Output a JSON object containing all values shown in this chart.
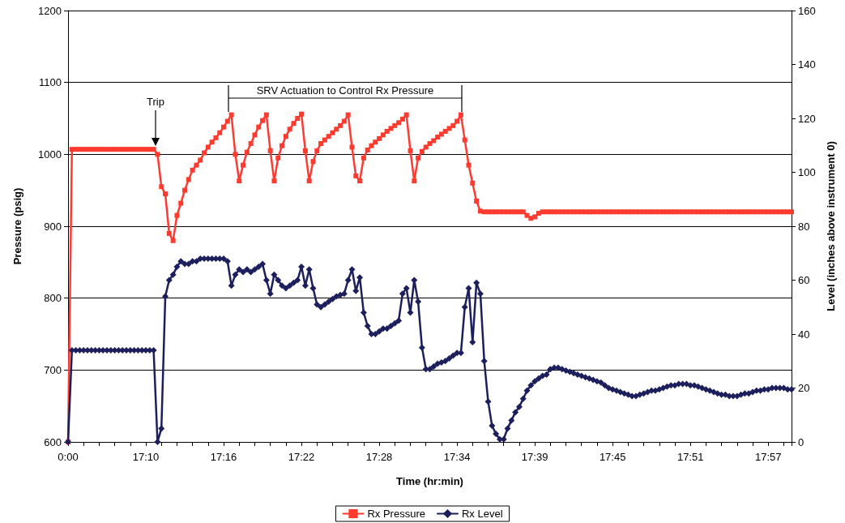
{
  "chart_data": {
    "type": "line",
    "xlabel": "Time (hr:min)",
    "ylabel": "Pressure (psig)",
    "y2label": "Level (inches above instrument 0)",
    "categories": [
      "0:00",
      null,
      null,
      null,
      null,
      null,
      null,
      null,
      null,
      null,
      null,
      null,
      null,
      null,
      null,
      null,
      null,
      null,
      null,
      null,
      "17:10",
      null,
      null,
      null,
      null,
      null,
      null,
      null,
      null,
      null,
      null,
      null,
      null,
      null,
      null,
      null,
      null,
      null,
      null,
      null,
      "17:16",
      null,
      null,
      null,
      null,
      null,
      null,
      null,
      null,
      null,
      null,
      null,
      null,
      null,
      null,
      null,
      null,
      null,
      null,
      null,
      "17:22",
      null,
      null,
      null,
      null,
      null,
      null,
      null,
      null,
      null,
      null,
      null,
      null,
      null,
      null,
      null,
      null,
      null,
      null,
      null,
      "17:28",
      null,
      null,
      null,
      null,
      null,
      null,
      null,
      null,
      null,
      null,
      null,
      null,
      null,
      null,
      null,
      null,
      null,
      null,
      null,
      "17:34",
      null,
      null,
      null,
      null,
      null,
      null,
      null,
      null,
      null,
      null,
      null,
      null,
      null,
      null,
      null,
      null,
      null,
      null,
      null,
      "17:39",
      null,
      null,
      null,
      null,
      null,
      null,
      null,
      null,
      null,
      null,
      null,
      null,
      null,
      null,
      null,
      null,
      null,
      null,
      null,
      "17:45",
      null,
      null,
      null,
      null,
      null,
      null,
      null,
      null,
      null,
      null,
      null,
      null,
      null,
      null,
      null,
      null,
      null,
      null,
      null,
      "17:51",
      null,
      null,
      null,
      null,
      null,
      null,
      null,
      null,
      null,
      null,
      null,
      null,
      null,
      null,
      null,
      null,
      null,
      null,
      null,
      "17:57",
      null,
      null,
      null,
      null,
      null,
      null
    ],
    "series": [
      {
        "name": "Rx Pressure",
        "color": "#ff3b30",
        "marker": "square",
        "values": [
          600,
          1007,
          1007,
          1007,
          1007,
          1007,
          1007,
          1007,
          1007,
          1007,
          1007,
          1007,
          1007,
          1007,
          1007,
          1007,
          1007,
          1007,
          1007,
          1007,
          1007,
          1007,
          1007,
          1000,
          955,
          945,
          890,
          880,
          915,
          932,
          950,
          965,
          978,
          985,
          992,
          1002,
          1010,
          1017,
          1023,
          1030,
          1038,
          1046,
          1055,
          1000,
          963,
          985,
          1003,
          1015,
          1027,
          1038,
          1047,
          1055,
          1005,
          963,
          995,
          1012,
          1025,
          1035,
          1043,
          1050,
          1056,
          1005,
          963,
          990,
          1005,
          1015,
          1020,
          1025,
          1030,
          1035,
          1040,
          1046,
          1055,
          1010,
          970,
          963,
          995,
          1006,
          1012,
          1017,
          1022,
          1027,
          1032,
          1036,
          1040,
          1044,
          1049,
          1055,
          1005,
          963,
          995,
          1004,
          1010,
          1015,
          1019,
          1024,
          1028,
          1032,
          1036,
          1040,
          1046,
          1055,
          1020,
          985,
          960,
          935,
          921,
          920,
          920,
          920,
          920,
          920,
          920,
          920,
          920,
          920,
          920,
          920,
          915,
          911,
          913,
          918,
          920,
          920,
          920,
          920,
          920,
          920,
          920,
          920,
          920,
          920,
          920,
          920,
          920,
          920,
          920,
          920,
          920,
          920,
          920,
          920,
          920,
          920,
          920,
          920,
          920,
          920,
          920,
          920,
          920,
          920,
          920,
          920,
          920,
          920,
          920,
          920,
          920,
          920,
          920,
          920,
          920,
          920,
          920,
          920,
          920,
          920,
          920,
          920,
          920,
          920,
          920,
          920,
          920,
          920,
          920,
          920,
          920,
          920,
          920,
          920,
          920,
          920,
          920,
          920,
          920
        ]
      },
      {
        "name": "Rx Level",
        "color": "#1c1f5c",
        "marker": "diamond",
        "axis": "y2",
        "values": [
          0,
          34,
          34,
          34,
          34,
          34,
          34,
          34,
          34,
          34,
          34,
          34,
          34,
          34,
          34,
          34,
          34,
          34,
          34,
          34,
          34,
          34,
          34,
          0,
          5,
          54,
          60,
          62,
          65,
          67,
          66,
          66,
          67,
          67,
          68,
          68,
          68,
          68,
          68,
          68,
          68,
          67,
          58,
          62,
          64,
          63,
          64,
          63,
          64,
          65,
          66,
          60,
          55,
          62,
          60,
          58,
          57,
          58,
          59,
          60,
          65,
          58,
          64,
          57,
          51,
          50,
          51,
          52,
          53,
          54,
          54.5,
          55,
          60,
          64,
          56,
          61,
          48,
          43,
          40,
          40,
          41,
          42,
          42,
          43,
          44,
          45,
          55,
          57,
          48,
          60,
          52,
          35,
          27,
          27,
          28,
          29,
          29.5,
          30,
          31,
          32,
          33,
          33,
          50,
          57,
          37,
          59,
          55,
          30,
          15,
          6,
          3,
          1,
          1,
          5,
          8,
          11,
          13,
          16,
          19,
          21,
          22.5,
          23.5,
          24.5,
          25,
          27,
          27.5,
          27.5,
          27,
          26.5,
          26,
          25.5,
          25,
          24.5,
          24,
          23.5,
          23,
          22.5,
          22,
          21,
          20,
          19.5,
          19,
          18.5,
          18,
          17.5,
          17,
          17,
          17.5,
          18,
          18.5,
          19,
          19,
          19.5,
          20,
          20.5,
          21,
          21,
          21.5,
          21.5,
          21.5,
          21,
          21,
          20.5,
          20,
          19.5,
          19,
          18.5,
          18,
          17.5,
          17.5,
          17,
          17,
          17,
          17.5,
          18,
          18,
          18.5,
          19,
          19,
          19.5,
          19.5,
          20,
          20,
          20,
          20,
          19.5,
          19.5
        ]
      }
    ],
    "ylim": [
      600,
      1200
    ],
    "yticks": [
      600,
      700,
      800,
      900,
      1000,
      1100,
      1200
    ],
    "y2lim": [
      0,
      160
    ],
    "y2ticks": [
      0,
      20,
      40,
      60,
      80,
      100,
      120,
      140,
      160
    ],
    "grid": "y",
    "legend": "bottom",
    "annotations": [
      "Trip",
      "SRV Actuation to Control Rx Pressure"
    ]
  }
}
